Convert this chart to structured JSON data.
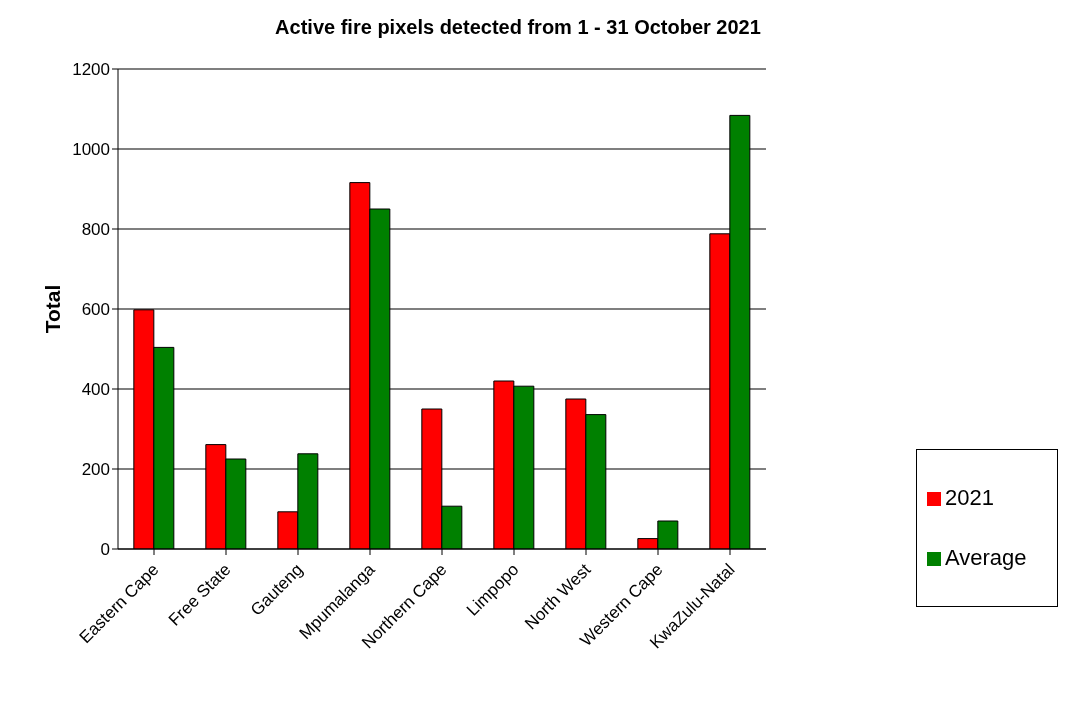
{
  "chart_data": {
    "type": "bar",
    "title": "Active fire pixels detected from 1 - 31 October  2021",
    "ylabel": "Total",
    "categories": [
      "Eastern Cape",
      "Free State",
      "Gauteng",
      "Mpumalanga",
      "Northern Cape",
      "Limpopo",
      "North West",
      "Western Cape",
      "KwaZulu-Natal"
    ],
    "series": [
      {
        "name": "2021",
        "color": "#ff0000",
        "values": [
          598,
          261,
          93,
          916,
          350,
          420,
          375,
          26,
          788
        ]
      },
      {
        "name": "Average",
        "color": "#008000",
        "values": [
          504,
          225,
          238,
          850,
          107,
          407,
          336,
          70,
          1084
        ]
      }
    ],
    "ylim": [
      0,
      1200
    ],
    "yticks": [
      0,
      200,
      400,
      600,
      800,
      1000,
      1200
    ],
    "grid": "y",
    "legend": "right"
  }
}
